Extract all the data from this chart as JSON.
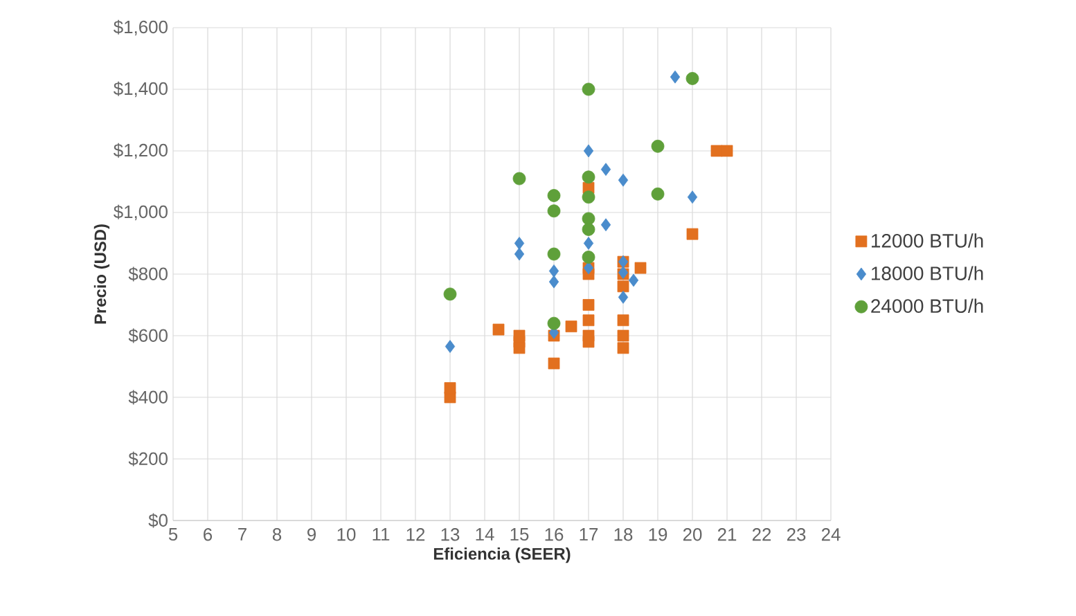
{
  "chart_data": {
    "type": "scatter",
    "xlabel": "Eficiencia (SEER)",
    "ylabel": "Precio (USD)",
    "xlim": [
      5,
      24
    ],
    "xticks": [
      5,
      6,
      7,
      8,
      9,
      10,
      11,
      12,
      13,
      14,
      15,
      16,
      17,
      18,
      19,
      20,
      21,
      22,
      23,
      24
    ],
    "ylim": [
      0,
      1600
    ],
    "yticks": [
      {
        "value": 0,
        "label": "$0"
      },
      {
        "value": 200,
        "label": "$200"
      },
      {
        "value": 400,
        "label": "$400"
      },
      {
        "value": 600,
        "label": "$600"
      },
      {
        "value": 800,
        "label": "$800"
      },
      {
        "value": 1000,
        "label": "$1,000"
      },
      {
        "value": 1200,
        "label": "$1,200"
      },
      {
        "value": 1400,
        "label": "$1,400"
      },
      {
        "value": 1600,
        "label": "$1,600"
      }
    ],
    "grid": true,
    "legend": "right",
    "series": [
      {
        "name": "12000 BTU/h",
        "color": "#e2701f",
        "marker": "square",
        "x": [
          13,
          13,
          14.4,
          15,
          15,
          15,
          16,
          16,
          16.5,
          17,
          17,
          17,
          17,
          17,
          17,
          17,
          18,
          18,
          18,
          18,
          18,
          18,
          18.5,
          20,
          20.7,
          21
        ],
        "values": [
          400,
          430,
          620,
          600,
          580,
          560,
          510,
          600,
          630,
          700,
          650,
          600,
          580,
          800,
          820,
          1080,
          840,
          800,
          760,
          650,
          600,
          560,
          820,
          930,
          1200,
          1200
        ]
      },
      {
        "name": "18000 BTU/h",
        "color": "#4a8ccc",
        "marker": "diamond",
        "x": [
          13,
          15,
          15,
          16,
          16,
          16,
          17,
          17,
          17,
          17.5,
          17.5,
          18,
          18,
          18,
          18,
          18.3,
          19.5,
          20
        ],
        "values": [
          565,
          900,
          865,
          810,
          775,
          610,
          1200,
          900,
          820,
          1140,
          960,
          1105,
          840,
          805,
          725,
          780,
          1440,
          1050
        ]
      },
      {
        "name": "24000 BTU/h",
        "color": "#5fa03a",
        "marker": "circle",
        "x": [
          13,
          15,
          16,
          16,
          16,
          16,
          17,
          17,
          17,
          17,
          17,
          17,
          19,
          19,
          20
        ],
        "values": [
          735,
          1110,
          1055,
          1005,
          865,
          640,
          1400,
          1115,
          1050,
          980,
          945,
          855,
          1215,
          1060,
          1435
        ]
      }
    ]
  }
}
